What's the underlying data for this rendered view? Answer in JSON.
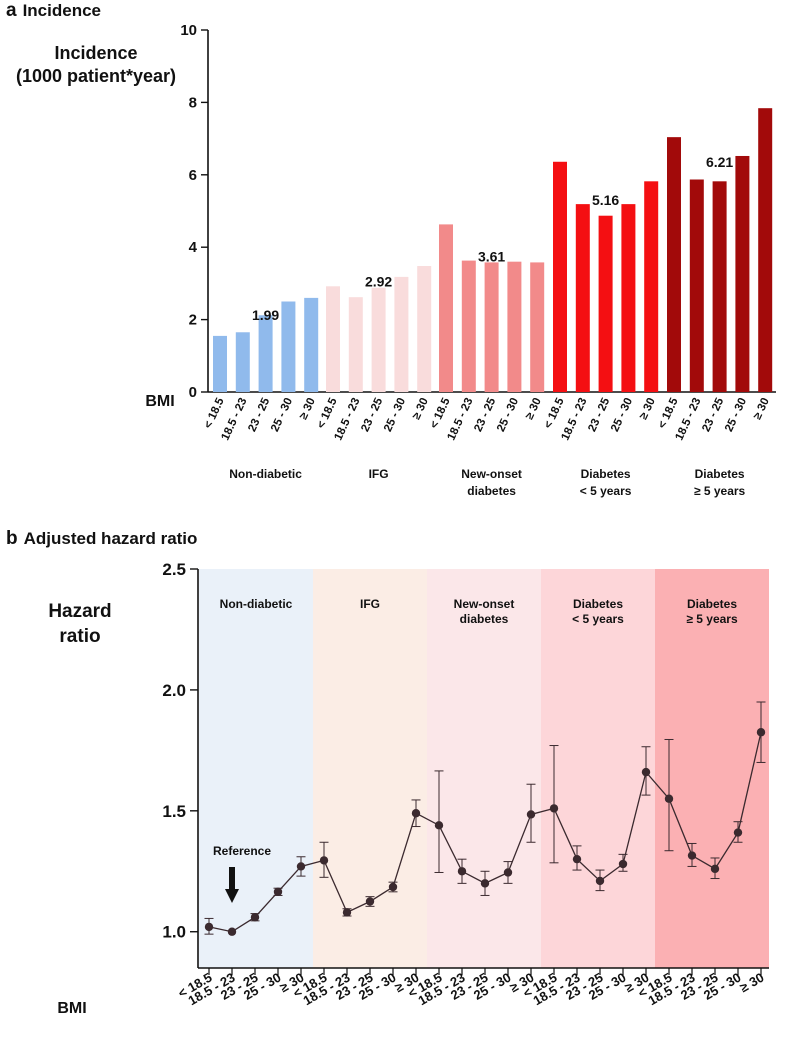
{
  "panels": {
    "a": {
      "letter": "a",
      "title": "Incidence"
    },
    "b": {
      "letter": "b",
      "title": "Adjusted hazard ratio"
    }
  },
  "colors": {
    "non_diabetic": "#90BAEC",
    "ifg": "#F9DCDC",
    "new_onset": "#F28A8A",
    "diabetes_lt5": "#F40F12",
    "diabetes_ge5": "#A20A0A",
    "bg_non_diabetic": "#EAF1F9",
    "bg_ifg": "#FBEDE5",
    "bg_new_onset": "#FBE7E9",
    "bg_diabetes_lt5": "#FDD6D9",
    "bg_diabetes_ge5": "#FBB0B3",
    "line": "#3b2a2f"
  },
  "chart_data": [
    {
      "type": "bar",
      "title": "Incidence",
      "ylabel_line1": "Incidence",
      "ylabel_line2": "(1000 patient*year)",
      "xlabel": "BMI",
      "ylim": [
        0,
        10
      ],
      "yticks": [
        "0",
        "2",
        "4",
        "6",
        "8",
        "10"
      ],
      "bmi_categories": [
        "< 18.5",
        "18.5 - 23",
        "23 - 25",
        "25 - 30",
        "≥ 30"
      ],
      "groups": [
        {
          "key": "non_diabetic",
          "label_line1": "Non-diabetic",
          "label_line2": "",
          "overall": 1.99,
          "overall_label": "1.99",
          "values": [
            1.55,
            1.65,
            2.12,
            2.5,
            2.6
          ]
        },
        {
          "key": "ifg",
          "label_line1": "IFG",
          "label_line2": "",
          "overall": 2.92,
          "overall_label": "2.92",
          "values": [
            2.92,
            2.62,
            2.88,
            3.18,
            3.48
          ]
        },
        {
          "key": "new_onset",
          "label_line1": "New-onset",
          "label_line2": "diabetes",
          "overall": 3.61,
          "overall_label": "3.61",
          "values": [
            4.63,
            3.63,
            3.58,
            3.6,
            3.58
          ]
        },
        {
          "key": "diabetes_lt5",
          "label_line1": "Diabetes",
          "label_line2": "< 5 years",
          "overall": 5.16,
          "overall_label": "5.16",
          "values": [
            6.36,
            5.19,
            4.87,
            5.19,
            5.82
          ]
        },
        {
          "key": "diabetes_ge5",
          "label_line1": "Diabetes",
          "label_line2": "≥ 5 years",
          "overall": 6.21,
          "overall_label": "6.21",
          "values": [
            7.04,
            5.87,
            5.82,
            6.52,
            7.84
          ]
        }
      ]
    },
    {
      "type": "line",
      "title": "Adjusted hazard ratio",
      "ylabel_line1": "Hazard",
      "ylabel_line2": "ratio",
      "xlabel": "BMI",
      "ylim": [
        0.85,
        2.5
      ],
      "yticks": [
        "1.0",
        "1.5",
        "2.0",
        "2.5"
      ],
      "reference_label": "Reference",
      "bmi_categories": [
        "< 18.5",
        "18.5 - 23",
        "23 - 25",
        "25 - 30",
        "≥ 30"
      ],
      "groups": [
        {
          "key": "non_diabetic",
          "label_line1": "Non-diabetic",
          "label_line2": "",
          "hr": [
            1.02,
            1.0,
            1.06,
            1.165,
            1.27
          ],
          "lo": [
            0.99,
            1.0,
            1.045,
            1.15,
            1.23
          ],
          "hi": [
            1.055,
            1.0,
            1.075,
            1.18,
            1.31
          ]
        },
        {
          "key": "ifg",
          "label_line1": "IFG",
          "label_line2": "",
          "hr": [
            1.295,
            1.08,
            1.125,
            1.185,
            1.49
          ],
          "lo": [
            1.225,
            1.065,
            1.105,
            1.165,
            1.435
          ],
          "hi": [
            1.37,
            1.095,
            1.145,
            1.205,
            1.545
          ]
        },
        {
          "key": "new_onset",
          "label_line1": "New-onset",
          "label_line2": "diabetes",
          "hr": [
            1.44,
            1.25,
            1.2,
            1.245,
            1.485
          ],
          "lo": [
            1.245,
            1.2,
            1.15,
            1.2,
            1.37
          ],
          "hi": [
            1.665,
            1.3,
            1.25,
            1.29,
            1.61
          ]
        },
        {
          "key": "diabetes_lt5",
          "label_line1": "Diabetes",
          "label_line2": "< 5 years",
          "hr": [
            1.51,
            1.3,
            1.21,
            1.28,
            1.66
          ],
          "lo": [
            1.285,
            1.255,
            1.17,
            1.25,
            1.565
          ],
          "hi": [
            1.77,
            1.355,
            1.255,
            1.32,
            1.765
          ]
        },
        {
          "key": "diabetes_ge5",
          "label_line1": "Diabetes",
          "label_line2": "≥ 5 years",
          "hr": [
            1.55,
            1.315,
            1.26,
            1.41,
            1.825
          ],
          "lo": [
            1.335,
            1.27,
            1.22,
            1.37,
            1.7
          ],
          "hi": [
            1.795,
            1.365,
            1.305,
            1.455,
            1.95
          ]
        }
      ]
    }
  ]
}
